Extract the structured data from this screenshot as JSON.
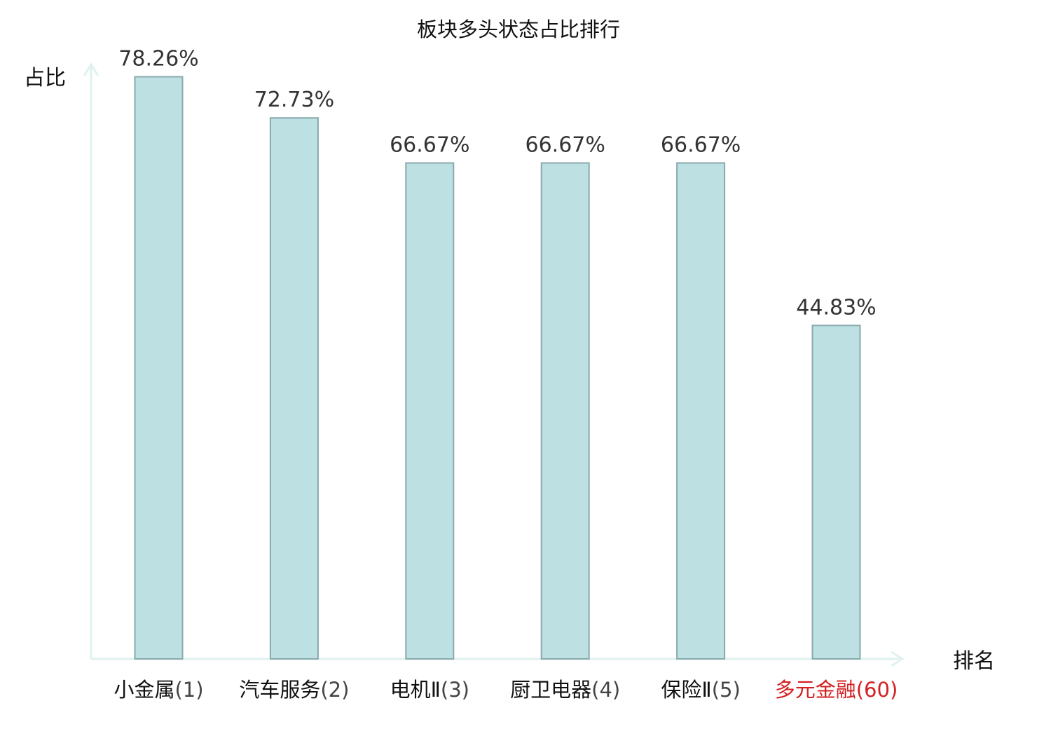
{
  "chart_data": {
    "type": "bar",
    "title": "板块多头状态占比排行",
    "xlabel": "排名",
    "ylabel": "占比",
    "ylim": [
      0,
      85
    ],
    "grid": false,
    "legend": "none",
    "categories": [
      {
        "name": "小金属",
        "rank": "(1)",
        "highlight": false
      },
      {
        "name": "汽车服务",
        "rank": "(2)",
        "highlight": false
      },
      {
        "name": "电机Ⅱ",
        "rank": "(3)",
        "highlight": false
      },
      {
        "name": "厨卫电器",
        "rank": "(4)",
        "highlight": false
      },
      {
        "name": "保险Ⅱ",
        "rank": "(5)",
        "highlight": false
      },
      {
        "name": "多元金融",
        "rank": "(60)",
        "highlight": true
      }
    ],
    "values": [
      78.26,
      72.73,
      66.67,
      66.67,
      66.67,
      44.83
    ],
    "value_labels": [
      "78.26%",
      "72.73%",
      "66.67%",
      "66.67%",
      "66.67%",
      "44.83%"
    ],
    "colors": {
      "bar_fill": "#bde0e3",
      "bar_stroke": "#8aa9ad",
      "axis": "#dff2ef",
      "highlight": "#d42020"
    }
  }
}
